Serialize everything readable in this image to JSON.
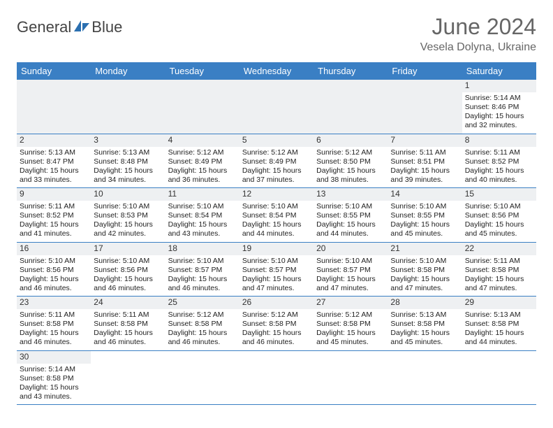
{
  "header": {
    "logo_general": "General",
    "logo_blue": "Blue",
    "month_title": "June 2024",
    "location": "Vesela Dolyna, Ukraine"
  },
  "colors": {
    "header_bg": "#3a7fc4",
    "header_text": "#ffffff",
    "daynum_bg": "#eef0f2",
    "week_border": "#3a7fc4",
    "title_color": "#666666",
    "text_color": "#222222"
  },
  "day_names": [
    "Sunday",
    "Monday",
    "Tuesday",
    "Wednesday",
    "Thursday",
    "Friday",
    "Saturday"
  ],
  "weeks": [
    [
      null,
      null,
      null,
      null,
      null,
      null,
      {
        "n": "1",
        "sr": "Sunrise: 5:14 AM",
        "ss": "Sunset: 8:46 PM",
        "d1": "Daylight: 15 hours",
        "d2": "and 32 minutes."
      }
    ],
    [
      {
        "n": "2",
        "sr": "Sunrise: 5:13 AM",
        "ss": "Sunset: 8:47 PM",
        "d1": "Daylight: 15 hours",
        "d2": "and 33 minutes."
      },
      {
        "n": "3",
        "sr": "Sunrise: 5:13 AM",
        "ss": "Sunset: 8:48 PM",
        "d1": "Daylight: 15 hours",
        "d2": "and 34 minutes."
      },
      {
        "n": "4",
        "sr": "Sunrise: 5:12 AM",
        "ss": "Sunset: 8:49 PM",
        "d1": "Daylight: 15 hours",
        "d2": "and 36 minutes."
      },
      {
        "n": "5",
        "sr": "Sunrise: 5:12 AM",
        "ss": "Sunset: 8:49 PM",
        "d1": "Daylight: 15 hours",
        "d2": "and 37 minutes."
      },
      {
        "n": "6",
        "sr": "Sunrise: 5:12 AM",
        "ss": "Sunset: 8:50 PM",
        "d1": "Daylight: 15 hours",
        "d2": "and 38 minutes."
      },
      {
        "n": "7",
        "sr": "Sunrise: 5:11 AM",
        "ss": "Sunset: 8:51 PM",
        "d1": "Daylight: 15 hours",
        "d2": "and 39 minutes."
      },
      {
        "n": "8",
        "sr": "Sunrise: 5:11 AM",
        "ss": "Sunset: 8:52 PM",
        "d1": "Daylight: 15 hours",
        "d2": "and 40 minutes."
      }
    ],
    [
      {
        "n": "9",
        "sr": "Sunrise: 5:11 AM",
        "ss": "Sunset: 8:52 PM",
        "d1": "Daylight: 15 hours",
        "d2": "and 41 minutes."
      },
      {
        "n": "10",
        "sr": "Sunrise: 5:10 AM",
        "ss": "Sunset: 8:53 PM",
        "d1": "Daylight: 15 hours",
        "d2": "and 42 minutes."
      },
      {
        "n": "11",
        "sr": "Sunrise: 5:10 AM",
        "ss": "Sunset: 8:54 PM",
        "d1": "Daylight: 15 hours",
        "d2": "and 43 minutes."
      },
      {
        "n": "12",
        "sr": "Sunrise: 5:10 AM",
        "ss": "Sunset: 8:54 PM",
        "d1": "Daylight: 15 hours",
        "d2": "and 44 minutes."
      },
      {
        "n": "13",
        "sr": "Sunrise: 5:10 AM",
        "ss": "Sunset: 8:55 PM",
        "d1": "Daylight: 15 hours",
        "d2": "and 44 minutes."
      },
      {
        "n": "14",
        "sr": "Sunrise: 5:10 AM",
        "ss": "Sunset: 8:55 PM",
        "d1": "Daylight: 15 hours",
        "d2": "and 45 minutes."
      },
      {
        "n": "15",
        "sr": "Sunrise: 5:10 AM",
        "ss": "Sunset: 8:56 PM",
        "d1": "Daylight: 15 hours",
        "d2": "and 45 minutes."
      }
    ],
    [
      {
        "n": "16",
        "sr": "Sunrise: 5:10 AM",
        "ss": "Sunset: 8:56 PM",
        "d1": "Daylight: 15 hours",
        "d2": "and 46 minutes."
      },
      {
        "n": "17",
        "sr": "Sunrise: 5:10 AM",
        "ss": "Sunset: 8:56 PM",
        "d1": "Daylight: 15 hours",
        "d2": "and 46 minutes."
      },
      {
        "n": "18",
        "sr": "Sunrise: 5:10 AM",
        "ss": "Sunset: 8:57 PM",
        "d1": "Daylight: 15 hours",
        "d2": "and 46 minutes."
      },
      {
        "n": "19",
        "sr": "Sunrise: 5:10 AM",
        "ss": "Sunset: 8:57 PM",
        "d1": "Daylight: 15 hours",
        "d2": "and 47 minutes."
      },
      {
        "n": "20",
        "sr": "Sunrise: 5:10 AM",
        "ss": "Sunset: 8:57 PM",
        "d1": "Daylight: 15 hours",
        "d2": "and 47 minutes."
      },
      {
        "n": "21",
        "sr": "Sunrise: 5:10 AM",
        "ss": "Sunset: 8:58 PM",
        "d1": "Daylight: 15 hours",
        "d2": "and 47 minutes."
      },
      {
        "n": "22",
        "sr": "Sunrise: 5:11 AM",
        "ss": "Sunset: 8:58 PM",
        "d1": "Daylight: 15 hours",
        "d2": "and 47 minutes."
      }
    ],
    [
      {
        "n": "23",
        "sr": "Sunrise: 5:11 AM",
        "ss": "Sunset: 8:58 PM",
        "d1": "Daylight: 15 hours",
        "d2": "and 46 minutes."
      },
      {
        "n": "24",
        "sr": "Sunrise: 5:11 AM",
        "ss": "Sunset: 8:58 PM",
        "d1": "Daylight: 15 hours",
        "d2": "and 46 minutes."
      },
      {
        "n": "25",
        "sr": "Sunrise: 5:12 AM",
        "ss": "Sunset: 8:58 PM",
        "d1": "Daylight: 15 hours",
        "d2": "and 46 minutes."
      },
      {
        "n": "26",
        "sr": "Sunrise: 5:12 AM",
        "ss": "Sunset: 8:58 PM",
        "d1": "Daylight: 15 hours",
        "d2": "and 46 minutes."
      },
      {
        "n": "27",
        "sr": "Sunrise: 5:12 AM",
        "ss": "Sunset: 8:58 PM",
        "d1": "Daylight: 15 hours",
        "d2": "and 45 minutes."
      },
      {
        "n": "28",
        "sr": "Sunrise: 5:13 AM",
        "ss": "Sunset: 8:58 PM",
        "d1": "Daylight: 15 hours",
        "d2": "and 45 minutes."
      },
      {
        "n": "29",
        "sr": "Sunrise: 5:13 AM",
        "ss": "Sunset: 8:58 PM",
        "d1": "Daylight: 15 hours",
        "d2": "and 44 minutes."
      }
    ],
    [
      {
        "n": "30",
        "sr": "Sunrise: 5:14 AM",
        "ss": "Sunset: 8:58 PM",
        "d1": "Daylight: 15 hours",
        "d2": "and 43 minutes."
      },
      null,
      null,
      null,
      null,
      null,
      null
    ]
  ]
}
